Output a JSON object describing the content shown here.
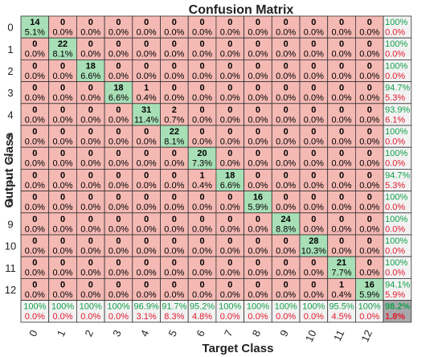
{
  "chart_data": {
    "type": "heatmap",
    "title": "Confusion Matrix",
    "xlabel": "Target Class",
    "ylabel": "Output Class",
    "x_ticks": [
      "0",
      "1",
      "2",
      "3",
      "4",
      "5",
      "6",
      "7",
      "8",
      "9",
      "10",
      "11",
      "12"
    ],
    "y_ticks": [
      "0",
      "1",
      "2",
      "3",
      "4",
      "5",
      "6",
      "7",
      "8",
      "9",
      "10",
      "11",
      "12"
    ],
    "matrix": [
      [
        14,
        0,
        0,
        0,
        0,
        0,
        0,
        0,
        0,
        0,
        0,
        0,
        0
      ],
      [
        0,
        22,
        0,
        0,
        0,
        0,
        0,
        0,
        0,
        0,
        0,
        0,
        0
      ],
      [
        0,
        0,
        18,
        0,
        0,
        0,
        0,
        0,
        0,
        0,
        0,
        0,
        0
      ],
      [
        0,
        0,
        0,
        18,
        1,
        0,
        0,
        0,
        0,
        0,
        0,
        0,
        0
      ],
      [
        0,
        0,
        0,
        0,
        31,
        2,
        0,
        0,
        0,
        0,
        0,
        0,
        0
      ],
      [
        0,
        0,
        0,
        0,
        0,
        22,
        0,
        0,
        0,
        0,
        0,
        0,
        0
      ],
      [
        0,
        0,
        0,
        0,
        0,
        0,
        20,
        0,
        0,
        0,
        0,
        0,
        0
      ],
      [
        0,
        0,
        0,
        0,
        0,
        0,
        1,
        18,
        0,
        0,
        0,
        0,
        0
      ],
      [
        0,
        0,
        0,
        0,
        0,
        0,
        0,
        0,
        16,
        0,
        0,
        0,
        0
      ],
      [
        0,
        0,
        0,
        0,
        0,
        0,
        0,
        0,
        0,
        24,
        0,
        0,
        0
      ],
      [
        0,
        0,
        0,
        0,
        0,
        0,
        0,
        0,
        0,
        0,
        28,
        0,
        0
      ],
      [
        0,
        0,
        0,
        0,
        0,
        0,
        0,
        0,
        0,
        0,
        0,
        21,
        0
      ],
      [
        0,
        0,
        0,
        0,
        0,
        0,
        0,
        0,
        0,
        0,
        0,
        1,
        16
      ]
    ],
    "cell_percent": [
      [
        "5.1%",
        "0.0%",
        "0.0%",
        "0.0%",
        "0.0%",
        "0.0%",
        "0.0%",
        "0.0%",
        "0.0%",
        "0.0%",
        "0.0%",
        "0.0%",
        "0.0%"
      ],
      [
        "0.0%",
        "8.1%",
        "0.0%",
        "0.0%",
        "0.0%",
        "0.0%",
        "0.0%",
        "0.0%",
        "0.0%",
        "0.0%",
        "0.0%",
        "0.0%",
        "0.0%"
      ],
      [
        "0.0%",
        "0.0%",
        "6.6%",
        "0.0%",
        "0.0%",
        "0.0%",
        "0.0%",
        "0.0%",
        "0.0%",
        "0.0%",
        "0.0%",
        "0.0%",
        "0.0%"
      ],
      [
        "0.0%",
        "0.0%",
        "0.0%",
        "6.6%",
        "0.4%",
        "0.0%",
        "0.0%",
        "0.0%",
        "0.0%",
        "0.0%",
        "0.0%",
        "0.0%",
        "0.0%"
      ],
      [
        "0.0%",
        "0.0%",
        "0.0%",
        "0.0%",
        "11.4%",
        "0.7%",
        "0.0%",
        "0.0%",
        "0.0%",
        "0.0%",
        "0.0%",
        "0.0%",
        "0.0%"
      ],
      [
        "0.0%",
        "0.0%",
        "0.0%",
        "0.0%",
        "0.0%",
        "8.1%",
        "0.0%",
        "0.0%",
        "0.0%",
        "0.0%",
        "0.0%",
        "0.0%",
        "0.0%"
      ],
      [
        "0.0%",
        "0.0%",
        "0.0%",
        "0.0%",
        "0.0%",
        "0.0%",
        "7.3%",
        "0.0%",
        "0.0%",
        "0.0%",
        "0.0%",
        "0.0%",
        "0.0%"
      ],
      [
        "0.0%",
        "0.0%",
        "0.0%",
        "0.0%",
        "0.0%",
        "0.0%",
        "0.4%",
        "6.6%",
        "0.0%",
        "0.0%",
        "0.0%",
        "0.0%",
        "0.0%"
      ],
      [
        "0.0%",
        "0.0%",
        "0.0%",
        "0.0%",
        "0.0%",
        "0.0%",
        "0.0%",
        "0.0%",
        "5.9%",
        "0.0%",
        "0.0%",
        "0.0%",
        "0.0%"
      ],
      [
        "0.0%",
        "0.0%",
        "0.0%",
        "0.0%",
        "0.0%",
        "0.0%",
        "0.0%",
        "0.0%",
        "0.0%",
        "8.8%",
        "0.0%",
        "0.0%",
        "0.0%"
      ],
      [
        "0.0%",
        "0.0%",
        "0.0%",
        "0.0%",
        "0.0%",
        "0.0%",
        "0.0%",
        "0.0%",
        "0.0%",
        "0.0%",
        "10.3%",
        "0.0%",
        "0.0%"
      ],
      [
        "0.0%",
        "0.0%",
        "0.0%",
        "0.0%",
        "0.0%",
        "0.0%",
        "0.0%",
        "0.0%",
        "0.0%",
        "0.0%",
        "0.0%",
        "7.7%",
        "0.0%"
      ],
      [
        "0.0%",
        "0.0%",
        "0.0%",
        "0.0%",
        "0.0%",
        "0.0%",
        "0.0%",
        "0.0%",
        "0.0%",
        "0.0%",
        "0.0%",
        "0.4%",
        "5.9%"
      ]
    ],
    "row_summary": [
      [
        "100%",
        "0.0%"
      ],
      [
        "100%",
        "0.0%"
      ],
      [
        "100%",
        "0.0%"
      ],
      [
        "94.7%",
        "5.3%"
      ],
      [
        "93.9%",
        "6.1%"
      ],
      [
        "100%",
        "0.0%"
      ],
      [
        "100%",
        "0.0%"
      ],
      [
        "94.7%",
        "5.3%"
      ],
      [
        "100%",
        "0.0%"
      ],
      [
        "100%",
        "0.0%"
      ],
      [
        "100%",
        "0.0%"
      ],
      [
        "100%",
        "0.0%"
      ],
      [
        "94.1%",
        "5.9%"
      ]
    ],
    "col_summary": [
      [
        "100%",
        "0.0%"
      ],
      [
        "100%",
        "0.0%"
      ],
      [
        "100%",
        "0.0%"
      ],
      [
        "100%",
        "0.0%"
      ],
      [
        "96.9%",
        "3.1%"
      ],
      [
        "91.7%",
        "8.3%"
      ],
      [
        "95.2%",
        "4.8%"
      ],
      [
        "100%",
        "0.0%"
      ],
      [
        "100%",
        "0.0%"
      ],
      [
        "100%",
        "0.0%"
      ],
      [
        "100%",
        "0.0%"
      ],
      [
        "95.5%",
        "4.5%"
      ],
      [
        "100%",
        "0.0%"
      ]
    ],
    "overall": [
      "98.2%",
      "1.8%"
    ],
    "grid": true
  },
  "colors": {
    "correct": "#a8dfb7",
    "incorrect": "#f5b9b4",
    "summary": "#f2f2f2",
    "overall": "#a9a9ad",
    "accuracy_text": "#11a04a",
    "error_text": "#e0192c",
    "grid": "#333333"
  }
}
